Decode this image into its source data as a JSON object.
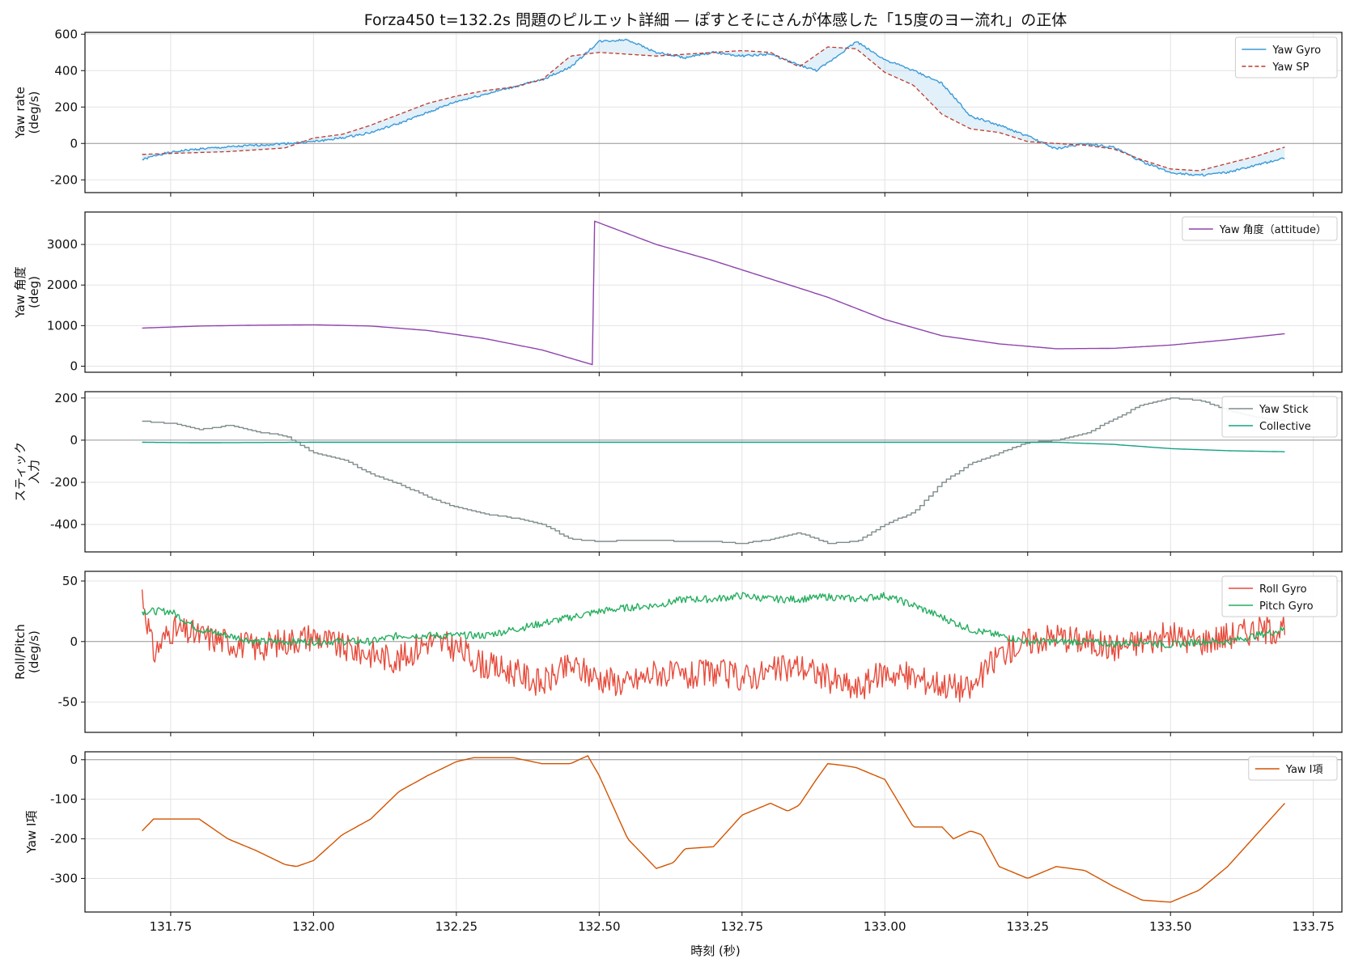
{
  "title": "Forza450 t=132.2s 問題のピルエット詳細 — ぽすとそにさんが体感した「15度のヨー流れ」の正体",
  "xlabel": "時刻 (秒)",
  "x_ticks": [
    "131.75",
    "132.00",
    "132.25",
    "132.50",
    "132.75",
    "133.00",
    "133.25",
    "133.50",
    "133.75"
  ],
  "chart_data": [
    {
      "type": "line",
      "ylabel": [
        "Yaw rate",
        "(deg/s)"
      ],
      "ylim": [
        -270,
        610
      ],
      "yticks": [
        -200,
        0,
        200,
        400,
        600
      ],
      "zero_line": true,
      "fill_between": [
        "Yaw Gyro",
        "Yaw SP"
      ],
      "legend": "top-right",
      "series": [
        {
          "name": "Yaw Gyro",
          "color": "#3a9ad9",
          "style": "solid",
          "x": [
            131.7,
            131.73,
            131.77,
            131.8,
            131.85,
            131.9,
            131.95,
            132.0,
            132.05,
            132.1,
            132.15,
            132.2,
            132.25,
            132.3,
            132.35,
            132.4,
            132.45,
            132.5,
            132.55,
            132.6,
            132.65,
            132.7,
            132.75,
            132.8,
            132.85,
            132.88,
            132.9,
            132.95,
            133.0,
            133.05,
            133.1,
            133.15,
            133.2,
            133.25,
            133.3,
            133.35,
            133.4,
            133.45,
            133.5,
            133.55,
            133.6,
            133.65,
            133.7
          ],
          "y": [
            -90,
            -60,
            -40,
            -30,
            -20,
            -10,
            0,
            10,
            30,
            60,
            110,
            170,
            230,
            270,
            310,
            350,
            420,
            560,
            570,
            500,
            470,
            500,
            480,
            490,
            430,
            400,
            440,
            560,
            460,
            400,
            330,
            150,
            100,
            40,
            -30,
            0,
            -20,
            -100,
            -160,
            -175,
            -160,
            -120,
            -80
          ]
        },
        {
          "name": "Yaw SP",
          "color": "#c0392b",
          "style": "dashed",
          "x": [
            131.7,
            131.75,
            131.8,
            131.85,
            131.9,
            131.95,
            132.0,
            132.05,
            132.1,
            132.15,
            132.2,
            132.25,
            132.3,
            132.35,
            132.4,
            132.45,
            132.5,
            132.55,
            132.6,
            132.65,
            132.7,
            132.75,
            132.8,
            132.85,
            132.9,
            132.95,
            133.0,
            133.05,
            133.1,
            133.15,
            133.2,
            133.25,
            133.3,
            133.35,
            133.4,
            133.45,
            133.5,
            133.55,
            133.6,
            133.65,
            133.7
          ],
          "y": [
            -60,
            -55,
            -50,
            -45,
            -35,
            -25,
            30,
            50,
            100,
            160,
            220,
            260,
            290,
            310,
            350,
            480,
            500,
            490,
            480,
            490,
            500,
            510,
            500,
            420,
            530,
            520,
            390,
            320,
            160,
            80,
            60,
            10,
            0,
            -10,
            -30,
            -90,
            -140,
            -150,
            -110,
            -70,
            -20
          ]
        }
      ]
    },
    {
      "type": "line",
      "ylabel": [
        "Yaw 角度",
        "(deg)"
      ],
      "ylim": [
        -150,
        3800
      ],
      "yticks": [
        0,
        1000,
        2000,
        3000
      ],
      "zero_line": false,
      "legend": "top-right",
      "series": [
        {
          "name": "Yaw 角度（attitude）",
          "color": "#8e44ad",
          "style": "solid",
          "x": [
            131.7,
            131.8,
            131.9,
            132.0,
            132.1,
            132.2,
            132.3,
            132.4,
            132.49,
            132.491,
            132.6,
            132.7,
            132.8,
            132.9,
            133.0,
            133.1,
            133.2,
            133.3,
            133.4,
            133.5,
            133.6,
            133.7
          ],
          "y": [
            940,
            990,
            1010,
            1020,
            990,
            880,
            680,
            400,
            30,
            3580,
            3000,
            2600,
            2150,
            1700,
            1150,
            750,
            550,
            430,
            440,
            520,
            650,
            800
          ]
        }
      ]
    },
    {
      "type": "line",
      "ylabel": [
        "スティック",
        "入力"
      ],
      "ylim": [
        -530,
        230
      ],
      "yticks": [
        -400,
        -200,
        0,
        200
      ],
      "zero_line": true,
      "legend": "top-right",
      "series": [
        {
          "name": "Yaw Stick",
          "color": "#7f8c8d",
          "style": "step",
          "x": [
            131.7,
            131.75,
            131.8,
            131.85,
            131.9,
            131.95,
            132.0,
            132.05,
            132.1,
            132.15,
            132.2,
            132.25,
            132.3,
            132.35,
            132.4,
            132.45,
            132.5,
            132.55,
            132.6,
            132.65,
            132.7,
            132.75,
            132.8,
            132.85,
            132.9,
            132.95,
            133.0,
            133.05,
            133.1,
            133.15,
            133.2,
            133.25,
            133.3,
            133.35,
            133.4,
            133.45,
            133.5,
            133.55,
            133.6,
            133.65,
            133.7
          ],
          "y": [
            90,
            80,
            50,
            70,
            40,
            20,
            -60,
            -90,
            -160,
            -210,
            -270,
            -320,
            -350,
            -370,
            -400,
            -470,
            -480,
            -475,
            -475,
            -480,
            -480,
            -490,
            -470,
            -440,
            -490,
            -480,
            -400,
            -340,
            -200,
            -110,
            -60,
            -10,
            0,
            30,
            100,
            170,
            200,
            190,
            140,
            110,
            90
          ]
        },
        {
          "name": "Collective",
          "color": "#16a085",
          "style": "solid",
          "x": [
            131.7,
            131.8,
            132.0,
            132.5,
            133.0,
            133.3,
            133.4,
            133.5,
            133.6,
            133.7
          ],
          "y": [
            -10,
            -12,
            -10,
            -10,
            -10,
            -10,
            -20,
            -40,
            -50,
            -55
          ]
        }
      ]
    },
    {
      "type": "line",
      "ylabel": [
        "Roll/Pitch",
        "(deg/s)"
      ],
      "ylim": [
        -75,
        58
      ],
      "yticks": [
        -50,
        0,
        50
      ],
      "zero_line": true,
      "legend": "top-right",
      "series": [
        {
          "name": "Roll Gyro",
          "color": "#e74c3c",
          "style": "solid",
          "x": [
            131.7,
            131.72,
            131.75,
            131.8,
            131.85,
            131.9,
            131.95,
            132.0,
            132.05,
            132.1,
            132.15,
            132.2,
            132.25,
            132.3,
            132.35,
            132.4,
            132.45,
            132.5,
            132.55,
            132.6,
            132.65,
            132.7,
            132.75,
            132.8,
            132.85,
            132.9,
            132.95,
            133.0,
            133.05,
            133.1,
            133.15,
            133.2,
            133.25,
            133.3,
            133.35,
            133.4,
            133.45,
            133.5,
            133.55,
            133.6,
            133.65,
            133.7
          ],
          "y": [
            40,
            -10,
            10,
            5,
            0,
            -5,
            0,
            5,
            -5,
            -10,
            -15,
            0,
            -5,
            -20,
            -25,
            -35,
            -20,
            -30,
            -35,
            -25,
            -30,
            -25,
            -30,
            -25,
            -20,
            -30,
            -40,
            -25,
            -30,
            -35,
            -40,
            -10,
            0,
            5,
            0,
            -5,
            0,
            5,
            0,
            5,
            10,
            10
          ]
        },
        {
          "name": "Pitch Gyro",
          "color": "#27ae60",
          "style": "solid",
          "x": [
            131.7,
            131.75,
            131.8,
            131.85,
            131.9,
            131.95,
            132.0,
            132.05,
            132.1,
            132.15,
            132.2,
            132.25,
            132.3,
            132.35,
            132.4,
            132.45,
            132.5,
            132.55,
            132.6,
            132.65,
            132.7,
            132.75,
            132.8,
            132.85,
            132.9,
            132.95,
            133.0,
            133.05,
            133.1,
            133.15,
            133.2,
            133.25,
            133.3,
            133.35,
            133.4,
            133.45,
            133.5,
            133.55,
            133.6,
            133.65,
            133.7
          ],
          "y": [
            25,
            25,
            10,
            5,
            0,
            0,
            0,
            0,
            0,
            5,
            5,
            5,
            5,
            10,
            15,
            20,
            25,
            28,
            30,
            35,
            35,
            38,
            35,
            35,
            37,
            35,
            38,
            30,
            20,
            10,
            5,
            0,
            0,
            0,
            -2,
            0,
            -3,
            0,
            0,
            5,
            10
          ]
        }
      ]
    },
    {
      "type": "line",
      "ylabel": [
        "Yaw I項"
      ],
      "ylim": [
        -385,
        20
      ],
      "yticks": [
        -300,
        -200,
        -100,
        0
      ],
      "zero_line": true,
      "legend": "top-right",
      "series": [
        {
          "name": "Yaw I項",
          "color": "#d35400",
          "style": "solid",
          "x": [
            131.7,
            131.72,
            131.75,
            131.8,
            131.85,
            131.9,
            131.95,
            131.97,
            132.0,
            132.05,
            132.1,
            132.15,
            132.2,
            132.25,
            132.28,
            132.3,
            132.35,
            132.4,
            132.45,
            132.48,
            132.5,
            132.55,
            132.6,
            132.63,
            132.65,
            132.7,
            132.75,
            132.8,
            132.83,
            132.85,
            132.88,
            132.9,
            132.93,
            132.95,
            133.0,
            133.05,
            133.1,
            133.12,
            133.15,
            133.17,
            133.2,
            133.25,
            133.3,
            133.35,
            133.4,
            133.45,
            133.5,
            133.55,
            133.6,
            133.65,
            133.7
          ],
          "y": [
            -180,
            -150,
            -150,
            -150,
            -200,
            -230,
            -265,
            -270,
            -255,
            -190,
            -150,
            -80,
            -40,
            -5,
            5,
            5,
            5,
            -10,
            -10,
            10,
            -40,
            -200,
            -275,
            -260,
            -225,
            -220,
            -140,
            -110,
            -130,
            -115,
            -50,
            -10,
            -15,
            -20,
            -50,
            -170,
            -170,
            -200,
            -180,
            -190,
            -270,
            -300,
            -270,
            -280,
            -320,
            -355,
            -360,
            -330,
            -270,
            -190,
            -110
          ]
        }
      ]
    }
  ]
}
